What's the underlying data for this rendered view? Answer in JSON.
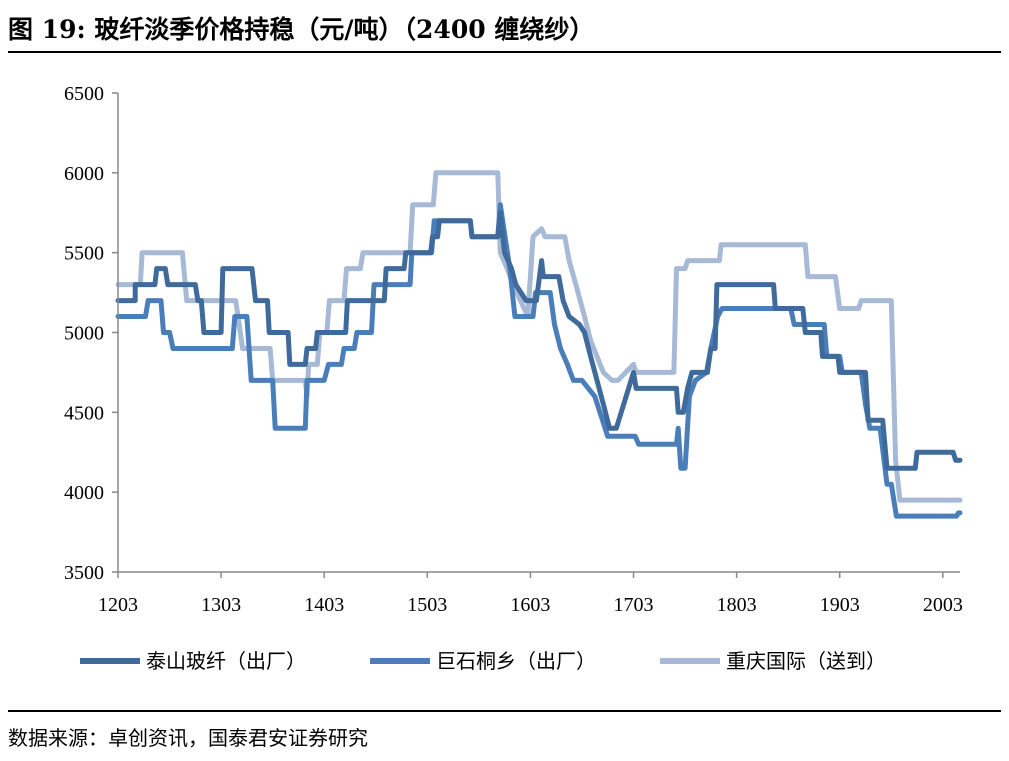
{
  "title": "图 19:  玻纤淡季价格持稳（元/吨）（2400 缠绕纱）",
  "source": "数据来源：卓创资讯，国泰君安证券研究",
  "chart_data": {
    "type": "line",
    "title": "玻纤淡季价格持稳（元/吨）（2400 缠绕纱）",
    "xlabel": "",
    "ylabel": "",
    "x_unit": "months since 2012-03",
    "xlim": [
      0,
      98
    ],
    "ylim": [
      3500,
      6500
    ],
    "yticks": [
      3500,
      4000,
      4500,
      5000,
      5500,
      6000,
      6500
    ],
    "xticks": [
      0,
      12,
      24,
      36,
      48,
      60,
      72,
      84,
      96
    ],
    "xtick_labels": [
      "1203",
      "1303",
      "1403",
      "1503",
      "1603",
      "1703",
      "1803",
      "1903",
      "2003"
    ],
    "grid": false,
    "legend_position": "bottom",
    "series": [
      {
        "name": "泰山玻纤（出厂）",
        "color": "#3E6A9C",
        "points": [
          [
            0,
            5200
          ],
          [
            2,
            5200
          ],
          [
            2,
            5300
          ],
          [
            4.3,
            5300
          ],
          [
            4.5,
            5400
          ],
          [
            5.5,
            5400
          ],
          [
            5.8,
            5300
          ],
          [
            9,
            5300
          ],
          [
            9.3,
            5200
          ],
          [
            9.7,
            5200
          ],
          [
            10,
            5000
          ],
          [
            12,
            5000
          ],
          [
            12.2,
            5400
          ],
          [
            15.6,
            5400
          ],
          [
            16,
            5200
          ],
          [
            17.4,
            5200
          ],
          [
            17.6,
            5000
          ],
          [
            19.8,
            5000
          ],
          [
            20,
            4800
          ],
          [
            21.8,
            4800
          ],
          [
            22,
            4900
          ],
          [
            23,
            4900
          ],
          [
            23.2,
            5000
          ],
          [
            26.5,
            5000
          ],
          [
            26.7,
            5200
          ],
          [
            31,
            5200
          ],
          [
            31.2,
            5400
          ],
          [
            33.3,
            5400
          ],
          [
            33.5,
            5500
          ],
          [
            36.4,
            5500
          ],
          [
            36.6,
            5600
          ],
          [
            37.2,
            5600
          ],
          [
            37.4,
            5700
          ],
          [
            41,
            5700
          ],
          [
            41.2,
            5600
          ],
          [
            44.2,
            5600
          ],
          [
            44.5,
            5750
          ],
          [
            45,
            5500
          ],
          [
            45.8,
            5400
          ],
          [
            46.3,
            5300
          ],
          [
            47.5,
            5200
          ],
          [
            48.7,
            5200
          ],
          [
            49.3,
            5450
          ],
          [
            49.5,
            5350
          ],
          [
            51.3,
            5350
          ],
          [
            51.8,
            5200
          ],
          [
            52.5,
            5100
          ],
          [
            53.7,
            5050
          ],
          [
            54.3,
            5000
          ],
          [
            55,
            4850
          ],
          [
            56.5,
            4550
          ],
          [
            57.2,
            4400
          ],
          [
            58,
            4400
          ],
          [
            60,
            4750
          ],
          [
            60.3,
            4650
          ],
          [
            65,
            4650
          ],
          [
            65.2,
            4500
          ],
          [
            65.8,
            4500
          ],
          [
            66.3,
            4650
          ],
          [
            66.8,
            4750
          ],
          [
            68.6,
            4750
          ],
          [
            69,
            4900
          ],
          [
            69.5,
            4900
          ],
          [
            69.7,
            5300
          ],
          [
            76.3,
            5300
          ],
          [
            76.5,
            5150
          ],
          [
            79.7,
            5150
          ],
          [
            80,
            5000
          ],
          [
            81.8,
            5000
          ],
          [
            82,
            4850
          ],
          [
            83.8,
            4850
          ],
          [
            84,
            4750
          ],
          [
            87,
            4750
          ],
          [
            87.3,
            4450
          ],
          [
            89,
            4450
          ],
          [
            89.5,
            4150
          ],
          [
            92.8,
            4150
          ],
          [
            93,
            4250
          ],
          [
            97.2,
            4250
          ],
          [
            97.5,
            4200
          ],
          [
            98,
            4200
          ]
        ]
      },
      {
        "name": "巨石桐乡（出厂）",
        "color": "#4A7EBB",
        "points": [
          [
            0,
            5100
          ],
          [
            3.2,
            5100
          ],
          [
            3.5,
            5200
          ],
          [
            5,
            5200
          ],
          [
            5.3,
            5000
          ],
          [
            6,
            5000
          ],
          [
            6.4,
            4900
          ],
          [
            13.3,
            4900
          ],
          [
            13.6,
            5100
          ],
          [
            15,
            5100
          ],
          [
            15.5,
            4700
          ],
          [
            18,
            4700
          ],
          [
            18.3,
            4400
          ],
          [
            21.8,
            4400
          ],
          [
            22,
            4700
          ],
          [
            24,
            4700
          ],
          [
            24.5,
            4800
          ],
          [
            26,
            4800
          ],
          [
            26.3,
            4900
          ],
          [
            27.5,
            4900
          ],
          [
            27.8,
            5000
          ],
          [
            29.5,
            5000
          ],
          [
            29.8,
            5300
          ],
          [
            34,
            5300
          ],
          [
            34.2,
            5500
          ],
          [
            36.5,
            5500
          ],
          [
            36.8,
            5700
          ],
          [
            41,
            5700
          ],
          [
            41.2,
            5600
          ],
          [
            44.2,
            5600
          ],
          [
            44.5,
            5800
          ],
          [
            45.6,
            5400
          ],
          [
            46.2,
            5100
          ],
          [
            48.3,
            5100
          ],
          [
            48.6,
            5250
          ],
          [
            50.3,
            5250
          ],
          [
            50.8,
            5050
          ],
          [
            51.5,
            4900
          ],
          [
            52.3,
            4800
          ],
          [
            53,
            4700
          ],
          [
            54,
            4700
          ],
          [
            55.5,
            4600
          ],
          [
            57,
            4350
          ],
          [
            60.2,
            4350
          ],
          [
            60.6,
            4300
          ],
          [
            65,
            4300
          ],
          [
            65.2,
            4400
          ],
          [
            65.5,
            4150
          ],
          [
            66,
            4150
          ],
          [
            66.5,
            4600
          ],
          [
            67.2,
            4700
          ],
          [
            68.5,
            4750
          ],
          [
            69,
            4900
          ],
          [
            69.8,
            5100
          ],
          [
            70.3,
            5150
          ],
          [
            78.3,
            5150
          ],
          [
            78.7,
            5050
          ],
          [
            82.2,
            5050
          ],
          [
            82.5,
            4850
          ],
          [
            84,
            4850
          ],
          [
            84.3,
            4750
          ],
          [
            86.5,
            4750
          ],
          [
            87,
            4550
          ],
          [
            87.5,
            4400
          ],
          [
            88.7,
            4400
          ],
          [
            89.5,
            4050
          ],
          [
            90,
            4050
          ],
          [
            90.6,
            3850
          ],
          [
            97.6,
            3850
          ],
          [
            97.8,
            3870
          ],
          [
            98,
            3870
          ]
        ]
      },
      {
        "name": "重庆国际（送到）",
        "color": "#A6B9D6",
        "points": [
          [
            0,
            5300
          ],
          [
            2.6,
            5300
          ],
          [
            2.8,
            5500
          ],
          [
            7.5,
            5500
          ],
          [
            8,
            5200
          ],
          [
            13.7,
            5200
          ],
          [
            14.5,
            4900
          ],
          [
            17.7,
            4900
          ],
          [
            18,
            4700
          ],
          [
            21.8,
            4700
          ],
          [
            22,
            4600
          ],
          [
            22.2,
            4800
          ],
          [
            23.2,
            4800
          ],
          [
            23.5,
            5000
          ],
          [
            24.3,
            5000
          ],
          [
            24.6,
            5200
          ],
          [
            26.3,
            5200
          ],
          [
            26.6,
            5400
          ],
          [
            28.2,
            5400
          ],
          [
            28.5,
            5500
          ],
          [
            34,
            5500
          ],
          [
            34.3,
            5800
          ],
          [
            36.7,
            5800
          ],
          [
            37,
            6000
          ],
          [
            44.2,
            6000
          ],
          [
            44.5,
            5500
          ],
          [
            45.3,
            5400
          ],
          [
            46,
            5300
          ],
          [
            47.7,
            5100
          ],
          [
            48.3,
            5600
          ],
          [
            49.3,
            5650
          ],
          [
            49.7,
            5600
          ],
          [
            52,
            5600
          ],
          [
            52.5,
            5450
          ],
          [
            53.3,
            5300
          ],
          [
            54.3,
            5100
          ],
          [
            55,
            4950
          ],
          [
            56.5,
            4750
          ],
          [
            57.5,
            4700
          ],
          [
            58.2,
            4700
          ],
          [
            60,
            4800
          ],
          [
            60.3,
            4750
          ],
          [
            64.7,
            4750
          ],
          [
            65,
            5400
          ],
          [
            66,
            5400
          ],
          [
            66.3,
            5450
          ],
          [
            70,
            5450
          ],
          [
            70.2,
            5550
          ],
          [
            80,
            5550
          ],
          [
            80.3,
            5350
          ],
          [
            83.5,
            5350
          ],
          [
            84,
            5150
          ],
          [
            86.2,
            5150
          ],
          [
            86.5,
            5200
          ],
          [
            90,
            5200
          ],
          [
            90.5,
            4200
          ],
          [
            91,
            3950
          ],
          [
            98,
            3950
          ]
        ]
      }
    ]
  }
}
